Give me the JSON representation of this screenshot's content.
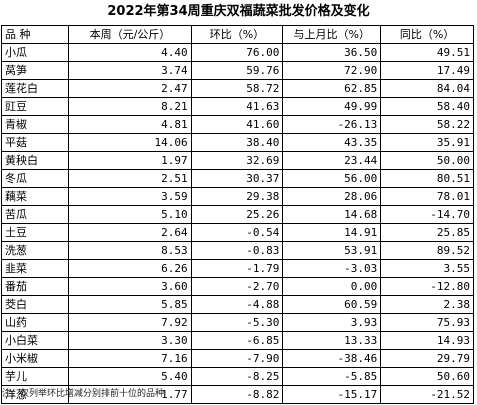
{
  "title": "2022年第34周重庆双福蔬菜批发价格及变化",
  "headers": [
    "品 种",
    "本周（元/公斤）",
    "环比（%）",
    "与上月比（%）",
    "同比（%）"
  ],
  "rows": [
    [
      "小瓜",
      "4.40",
      "76.00",
      "36.50",
      "49.51"
    ],
    [
      "莴笋",
      "3.74",
      "59.76",
      "72.90",
      "17.49"
    ],
    [
      "莲花白",
      "2.47",
      "58.72",
      "62.85",
      "84.04"
    ],
    [
      "豇豆",
      "8.21",
      "41.63",
      "49.99",
      "58.40"
    ],
    [
      "青椒",
      "4.81",
      "41.60",
      "-26.13",
      "58.22"
    ],
    [
      "平菇",
      "14.06",
      "38.40",
      "43.35",
      "35.91"
    ],
    [
      "黄秧白",
      "1.97",
      "32.69",
      "23.44",
      "50.00"
    ],
    [
      "冬瓜",
      "2.51",
      "30.37",
      "56.00",
      "80.51"
    ],
    [
      "藕菜",
      "3.59",
      "29.38",
      "28.06",
      "78.01"
    ],
    [
      "苦瓜",
      "5.10",
      "25.26",
      "14.68",
      "-14.70"
    ],
    [
      "土豆",
      "2.64",
      "-0.54",
      "14.91",
      "25.85"
    ],
    [
      "洗葱",
      "8.53",
      "-0.83",
      "53.91",
      "89.52"
    ],
    [
      "韭菜",
      "6.26",
      "-1.79",
      "-3.03",
      "3.55"
    ],
    [
      "番茄",
      "3.60",
      "-2.70",
      "0.00",
      "-12.80"
    ],
    [
      "茭白",
      "5.85",
      "-4.88",
      "60.59",
      "2.38"
    ],
    [
      "山药",
      "7.92",
      "-5.30",
      "3.93",
      "75.93"
    ],
    [
      "小白菜",
      "3.30",
      "-6.85",
      "13.33",
      "14.93"
    ],
    [
      "小米椒",
      "7.16",
      "-7.90",
      "-38.46",
      "29.79"
    ],
    [
      "芋儿",
      "5.40",
      "-8.25",
      "-5.85",
      "50.60"
    ],
    [
      "洋葱",
      "1.77",
      "-8.82",
      "-15.17",
      "-21.52"
    ]
  ],
  "note": "注：仅列举环比增减分别排前十位的品种"
}
